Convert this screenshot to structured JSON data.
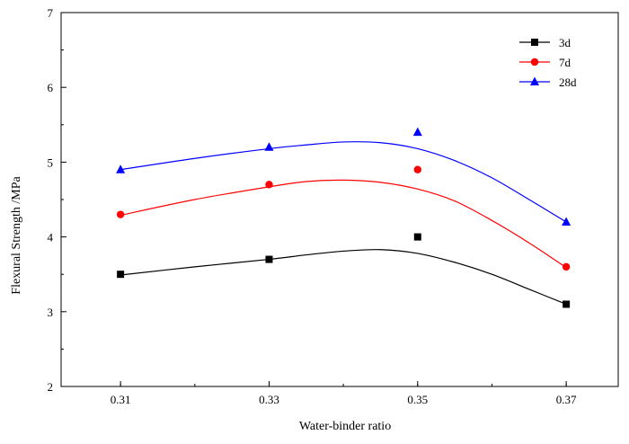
{
  "chart_data": {
    "type": "scatter",
    "xlabel": "Water-binder ratio",
    "ylabel": "Flexural Strength /MPa",
    "xlim": [
      0.302,
      0.377
    ],
    "ylim": [
      2,
      7
    ],
    "x_ticks": [
      "0.31",
      "0.33",
      "0.35",
      "0.37"
    ],
    "y_ticks": [
      "2",
      "3",
      "4",
      "5",
      "6",
      "7"
    ],
    "x": [
      0.31,
      0.33,
      0.35,
      0.37
    ],
    "legend_position": "top-right",
    "grid": false,
    "series": [
      {
        "name": "3d",
        "color": "#000000",
        "marker": "square",
        "values": [
          3.5,
          3.7,
          4.0,
          3.1
        ],
        "fit": [
          [
            0.31,
            3.49
          ],
          [
            0.32,
            3.6
          ],
          [
            0.33,
            3.7
          ],
          [
            0.335,
            3.76
          ],
          [
            0.34,
            3.81
          ],
          [
            0.345,
            3.83
          ],
          [
            0.35,
            3.78
          ],
          [
            0.355,
            3.66
          ],
          [
            0.36,
            3.5
          ],
          [
            0.365,
            3.3
          ],
          [
            0.37,
            3.1
          ]
        ]
      },
      {
        "name": "7d",
        "color": "#ff0000",
        "marker": "circle",
        "values": [
          4.3,
          4.7,
          4.9,
          3.6
        ],
        "fit": [
          [
            0.31,
            4.29
          ],
          [
            0.32,
            4.5
          ],
          [
            0.33,
            4.67
          ],
          [
            0.335,
            4.74
          ],
          [
            0.34,
            4.76
          ],
          [
            0.345,
            4.73
          ],
          [
            0.35,
            4.64
          ],
          [
            0.355,
            4.48
          ],
          [
            0.36,
            4.22
          ],
          [
            0.365,
            3.92
          ],
          [
            0.37,
            3.59
          ]
        ]
      },
      {
        "name": "28d",
        "color": "#0000ff",
        "marker": "triangle",
        "values": [
          4.9,
          5.2,
          5.4,
          4.2
        ],
        "fit": [
          [
            0.31,
            4.9
          ],
          [
            0.32,
            5.05
          ],
          [
            0.33,
            5.18
          ],
          [
            0.335,
            5.23
          ],
          [
            0.34,
            5.27
          ],
          [
            0.345,
            5.26
          ],
          [
            0.35,
            5.18
          ],
          [
            0.355,
            5.02
          ],
          [
            0.36,
            4.79
          ],
          [
            0.365,
            4.5
          ],
          [
            0.37,
            4.2
          ]
        ]
      }
    ]
  }
}
